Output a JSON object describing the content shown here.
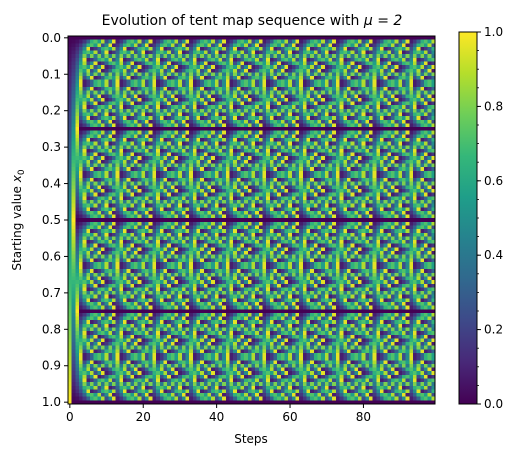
{
  "chart_data": {
    "type": "heatmap",
    "title_prefix": "Evolution of tent map sequence with ",
    "title_math": "μ = 2",
    "xlabel": "Steps",
    "ylabel_prefix": "Starting value ",
    "ylabel_math_base": "x",
    "ylabel_math_sub": "0",
    "mu": 2,
    "steps": 100,
    "starting_values": 101,
    "x_range": [
      0,
      99
    ],
    "y_range": [
      0.0,
      1.0
    ],
    "x_ticks": [
      0,
      20,
      40,
      60,
      80
    ],
    "x_tick_labels": [
      "0",
      "20",
      "40",
      "60",
      "80"
    ],
    "y_ticks": [
      0.0,
      0.1,
      0.2,
      0.3,
      0.4,
      0.5,
      0.6,
      0.7,
      0.8,
      0.9,
      1.0
    ],
    "y_tick_labels": [
      "0.0",
      "0.1",
      "0.2",
      "0.3",
      "0.4",
      "0.5",
      "0.6",
      "0.7",
      "0.8",
      "0.9",
      "1.0"
    ],
    "colorbar": {
      "colormap": "viridis",
      "range": [
        0.0,
        1.0
      ],
      "ticks": [
        0.0,
        0.2,
        0.4,
        0.6,
        0.8,
        1.0
      ],
      "tick_labels": [
        "0.0",
        "0.2",
        "0.4",
        "0.6",
        "0.8",
        "1.0"
      ],
      "minor_ticks": true
    },
    "grid": false,
    "colors": [
      "#440154",
      "#482878",
      "#3e4989",
      "#31688e",
      "#26828e",
      "#1f9e89",
      "#35b779",
      "#6ece58",
      "#b5de2b",
      "#fde725"
    ]
  }
}
